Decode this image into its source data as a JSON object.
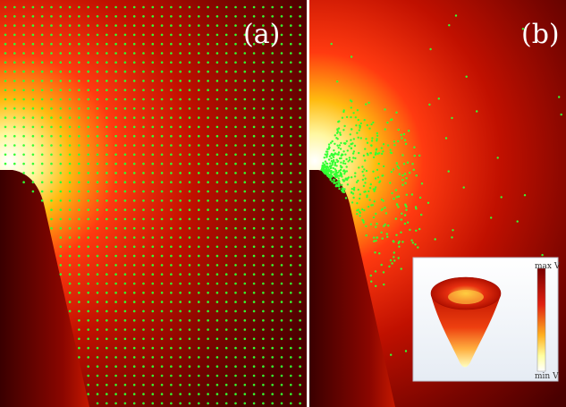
{
  "panels": [
    {
      "label": "(a)",
      "points": "uniform-grid"
    },
    {
      "label": "(b)",
      "points": "adaptive"
    }
  ],
  "inset": {
    "colorbar_max": "max V",
    "colorbar_min": "min V"
  },
  "colors": {
    "field_hot": "#ffffff",
    "field_mid": "#ff3010",
    "field_dark": "#3a0000",
    "points": "#33ff33",
    "separator": "#ffffff"
  }
}
